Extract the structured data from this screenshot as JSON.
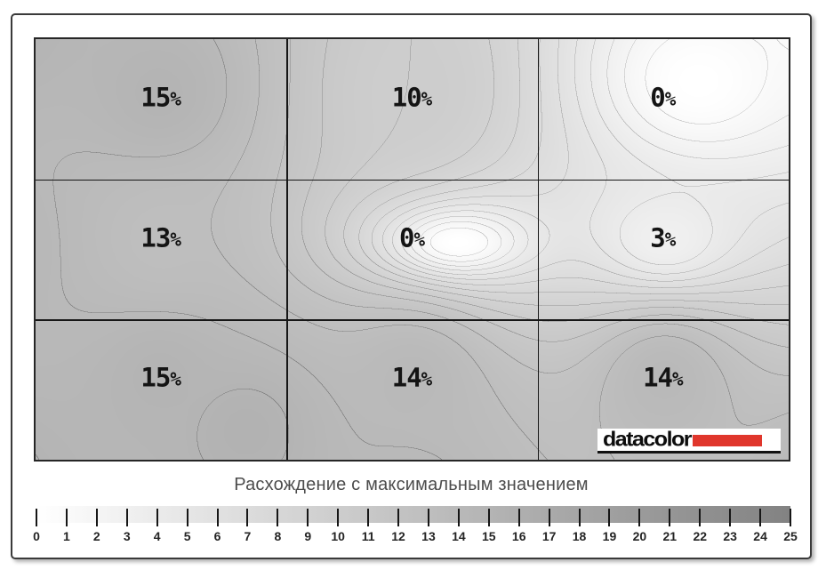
{
  "logo": {
    "text": "datacolor",
    "bar_color": "#e0362c"
  },
  "chart_data": {
    "type": "heatmap",
    "subtype": "contour-map",
    "title": "Расхождение с максимальным значением",
    "units": "%",
    "rows": 3,
    "cols": 3,
    "cell_labels": [
      [
        "15%",
        "10%",
        "0%"
      ],
      [
        "13%",
        "0%",
        "3%"
      ],
      [
        "15%",
        "14%",
        "14%"
      ]
    ],
    "cell_values": [
      [
        15,
        10,
        0
      ],
      [
        13,
        0,
        3
      ],
      [
        15,
        14,
        14
      ]
    ],
    "contour_interval": 1,
    "grid": "3x3 black grid lines over shaded contour field",
    "colorbar": {
      "orientation": "horizontal",
      "min": 0,
      "max": 25,
      "ticks": [
        0,
        1,
        2,
        3,
        4,
        5,
        6,
        7,
        8,
        9,
        10,
        11,
        12,
        13,
        14,
        15,
        16,
        17,
        18,
        19,
        20,
        21,
        22,
        23,
        24,
        25
      ],
      "start_color": "#ffffff",
      "end_color": "#828282"
    },
    "field_points": [
      {
        "x": 0.165,
        "y": 0.13,
        "v": 15
      },
      {
        "x": 0.5,
        "y": 0.13,
        "v": 10
      },
      {
        "x": 0.88,
        "y": 0.1,
        "v": 0,
        "sx": 0.9,
        "sy": 1.1
      },
      {
        "x": 1.07,
        "y": -0.1,
        "v": 0
      },
      {
        "x": 0.165,
        "y": 0.475,
        "v": 13
      },
      {
        "x": -0.04,
        "y": 0.49,
        "v": 14.3,
        "sy": 0.8
      },
      {
        "x": 0.561,
        "y": 0.483,
        "v": 0,
        "sy": 2.0
      },
      {
        "x": 0.835,
        "y": 0.475,
        "v": 3,
        "sy": 1.4
      },
      {
        "x": 0.165,
        "y": 0.8,
        "v": 15
      },
      {
        "x": 0.5,
        "y": 0.805,
        "v": 14
      },
      {
        "x": 0.835,
        "y": 0.805,
        "v": 14
      },
      {
        "x": 0.28,
        "y": 0.93,
        "v": 15.4
      },
      {
        "x": -0.06,
        "y": -0.06,
        "v": 15.3
      },
      {
        "x": -0.06,
        "y": 1.06,
        "v": 15.3
      },
      {
        "x": 1.06,
        "y": 1.06,
        "v": 14.2
      },
      {
        "x": 0.5,
        "y": 1.1,
        "v": 14.3
      }
    ]
  }
}
